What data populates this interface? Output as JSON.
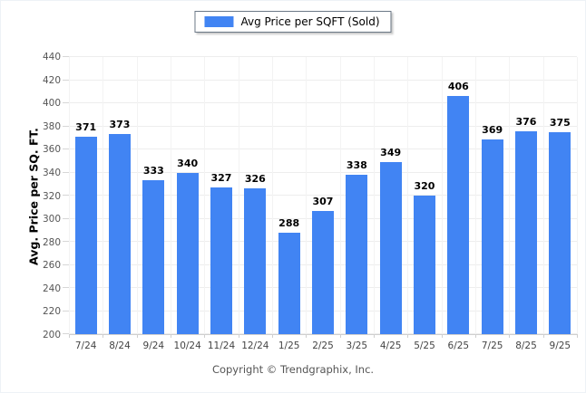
{
  "legend": {
    "label": "Avg Price per SQFT (Sold)",
    "swatch_color": "#4184F3"
  },
  "y_axis": {
    "title": "Avg. Price per SQ. FT."
  },
  "footer": {
    "copyright": "Copyright © Trendgraphix, Inc."
  },
  "colors": {
    "bar": "#4184F3",
    "gridline": "#ededed",
    "axis_line": "#cfcfcf"
  },
  "chart_data": {
    "type": "bar",
    "title": "",
    "xlabel": "",
    "ylabel": "Avg. Price per SQ. FT.",
    "categories": [
      "7/24",
      "8/24",
      "9/24",
      "10/24",
      "11/24",
      "12/24",
      "1/25",
      "2/25",
      "3/25",
      "4/25",
      "5/25",
      "6/25",
      "7/25",
      "8/25",
      "9/25"
    ],
    "series": [
      {
        "name": "Avg Price per SQFT (Sold)",
        "values": [
          371,
          373,
          333,
          340,
          327,
          326,
          288,
          307,
          338,
          349,
          320,
          406,
          369,
          376,
          375
        ]
      }
    ],
    "ylim": [
      200,
      440
    ],
    "ytick_step": 20,
    "grid": "horizontal-and-vertical",
    "legend_position": "top-center",
    "bar_color": "#4184F3",
    "value_labels": true
  }
}
